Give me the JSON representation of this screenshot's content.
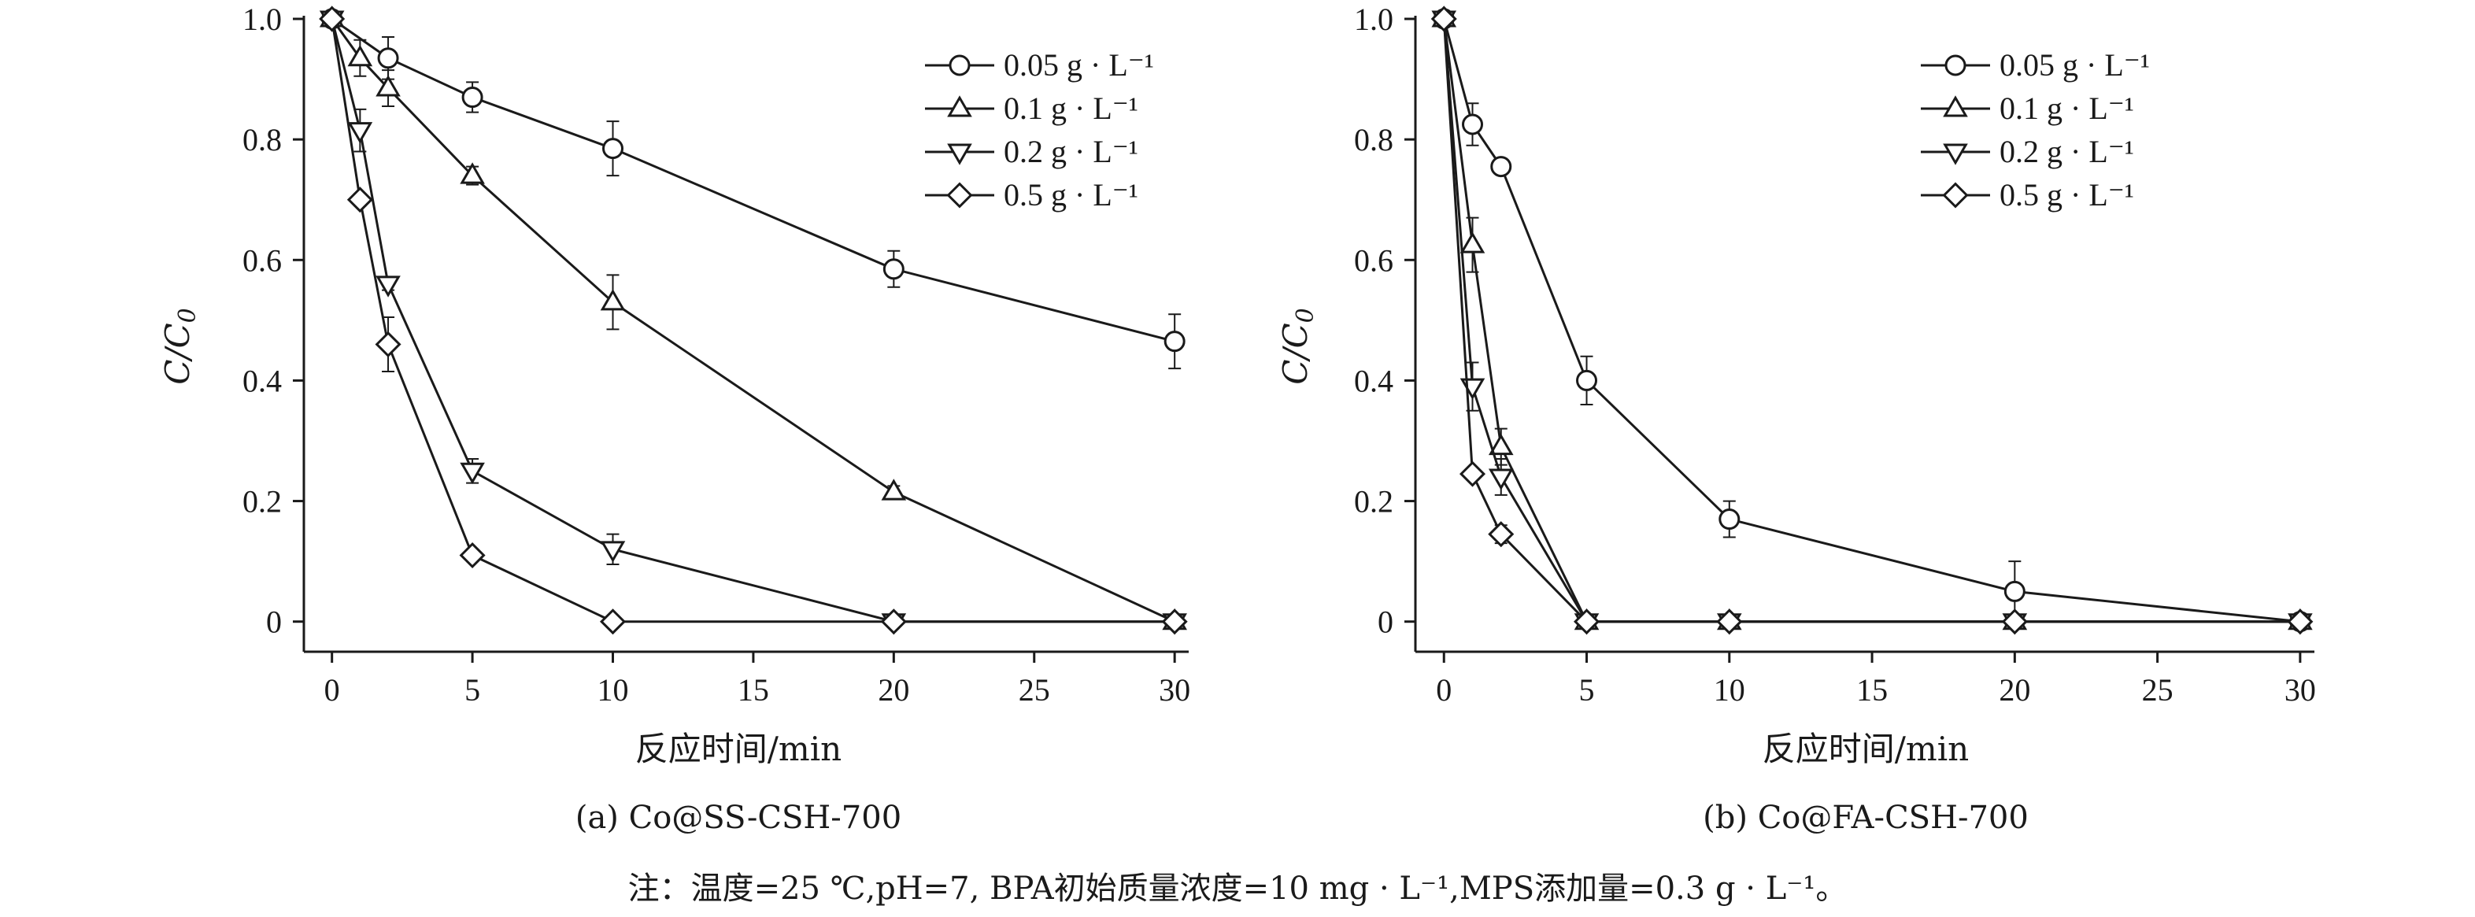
{
  "chart_data": [
    {
      "type": "line",
      "caption": "(a) Co@SS-CSH-700",
      "xlabel": "反应时间/min",
      "ylabel_main": "C/C",
      "ylabel_sub": "0",
      "xlim": [
        -1,
        30.5
      ],
      "ylim": [
        -0.05,
        1.0
      ],
      "xticks": [
        "0",
        "5",
        "10",
        "15",
        "20",
        "25",
        "30"
      ],
      "yticks": [
        "0",
        "0.2",
        "0.4",
        "0.6",
        "0.8",
        "1.0"
      ],
      "legend_position": "top-right",
      "series": [
        {
          "name": "0.05 g · L⁻¹",
          "marker": "circle",
          "x": [
            0,
            2,
            5,
            10,
            20,
            30
          ],
          "y": [
            1.0,
            0.935,
            0.87,
            0.785,
            0.585,
            0.465
          ],
          "err": [
            0,
            0.035,
            0.025,
            0.045,
            0.03,
            0.045
          ]
        },
        {
          "name": "0.1 g · L⁻¹",
          "marker": "triangle-up",
          "x": [
            0,
            1,
            2,
            5,
            10,
            20,
            30
          ],
          "y": [
            1.0,
            0.935,
            0.885,
            0.74,
            0.53,
            0.215,
            0.0
          ],
          "err": [
            0,
            0.03,
            0.03,
            0.015,
            0.045,
            0.01,
            0.0
          ]
        },
        {
          "name": "0.2 g · L⁻¹",
          "marker": "triangle-down",
          "x": [
            0,
            1,
            2,
            5,
            10,
            20,
            30
          ],
          "y": [
            1.0,
            0.815,
            0.56,
            0.25,
            0.12,
            0.0,
            0.0
          ],
          "err": [
            0,
            0.035,
            0.01,
            0.02,
            0.025,
            0.0,
            0.0
          ]
        },
        {
          "name": "0.5 g · L⁻¹",
          "marker": "diamond",
          "x": [
            0,
            1,
            2,
            5,
            10,
            20,
            30
          ],
          "y": [
            1.0,
            0.7,
            0.46,
            0.11,
            0.0,
            0.0,
            0.0
          ],
          "err": [
            0,
            0.01,
            0.045,
            0.01,
            0.0,
            0.0,
            0.0
          ]
        }
      ]
    },
    {
      "type": "line",
      "caption": "(b) Co@FA-CSH-700",
      "xlabel": "反应时间/min",
      "ylabel_main": "C/C",
      "ylabel_sub": "0",
      "xlim": [
        -1,
        30.5
      ],
      "ylim": [
        -0.05,
        1.0
      ],
      "xticks": [
        "0",
        "5",
        "10",
        "15",
        "20",
        "25",
        "30"
      ],
      "yticks": [
        "0",
        "0.2",
        "0.4",
        "0.6",
        "0.8",
        "1.0"
      ],
      "legend_position": "top-right",
      "series": [
        {
          "name": "0.05 g · L⁻¹",
          "marker": "circle",
          "x": [
            0,
            1,
            2,
            5,
            10,
            20,
            30
          ],
          "y": [
            1.0,
            0.825,
            0.755,
            0.4,
            0.17,
            0.05,
            0.0
          ],
          "err": [
            0,
            0.035,
            0.01,
            0.04,
            0.03,
            0.05,
            0.0
          ]
        },
        {
          "name": "0.1 g · L⁻¹",
          "marker": "triangle-up",
          "x": [
            0,
            1,
            2,
            5,
            10,
            20,
            30
          ],
          "y": [
            1.0,
            0.625,
            0.29,
            0.0,
            0.0,
            0.0,
            0.0
          ],
          "err": [
            0,
            0.045,
            0.03,
            0.0,
            0.0,
            0.0,
            0.0
          ]
        },
        {
          "name": "0.2 g · L⁻¹",
          "marker": "triangle-down",
          "x": [
            0,
            1,
            2,
            5,
            10,
            20,
            30
          ],
          "y": [
            1.0,
            0.39,
            0.24,
            0.0,
            0.0,
            0.0,
            0.0
          ],
          "err": [
            0,
            0.04,
            0.03,
            0.0,
            0.0,
            0.0,
            0.0
          ]
        },
        {
          "name": "0.5 g · L⁻¹",
          "marker": "diamond",
          "x": [
            0,
            1,
            2,
            5,
            10,
            20,
            30
          ],
          "y": [
            1.0,
            0.245,
            0.145,
            0.0,
            0.0,
            0.0,
            0.0
          ],
          "err": [
            0,
            0.01,
            0.015,
            0.0,
            0.0,
            0.0,
            0.0
          ]
        }
      ]
    }
  ],
  "footnote": "注：温度=25 ℃,pH=7, BPA初始质量浓度=10 mg · L⁻¹,MPS添加量=0.3 g · L⁻¹。"
}
